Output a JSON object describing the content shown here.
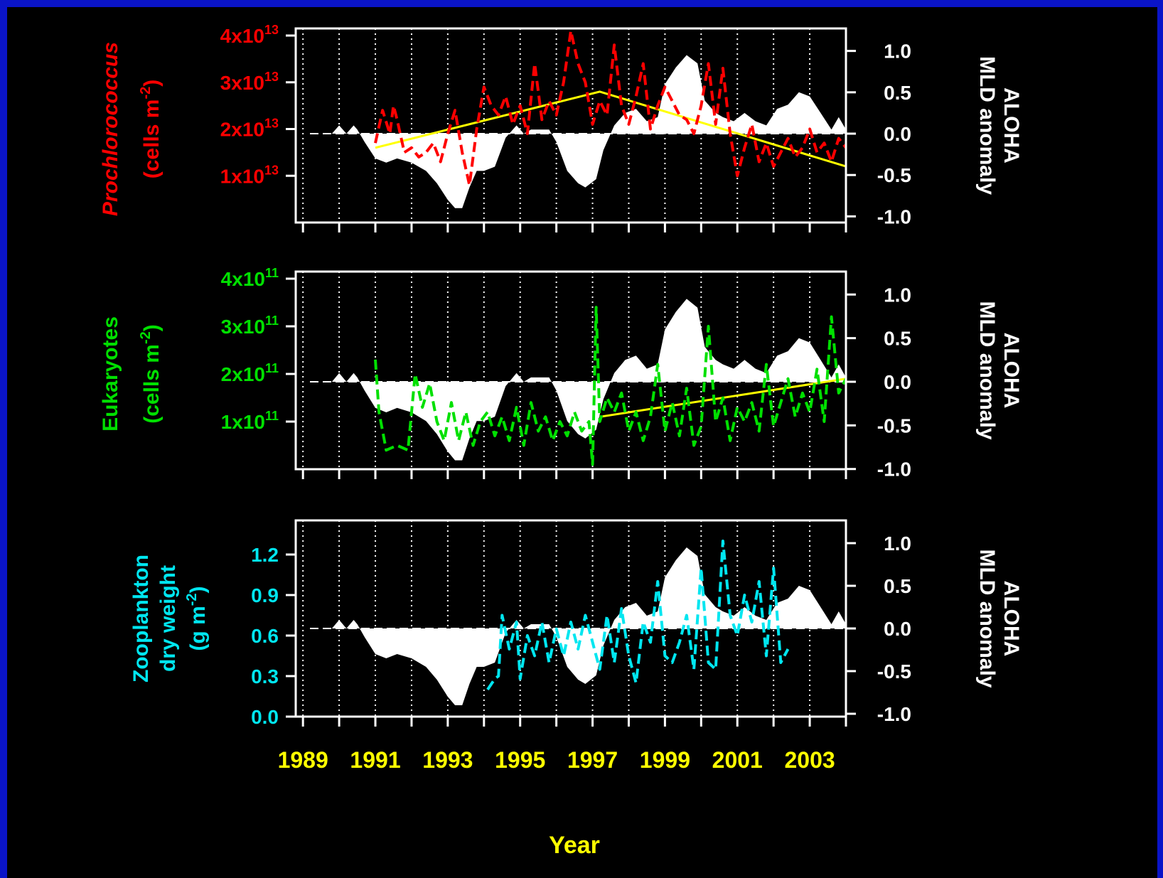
{
  "colors": {
    "background": "#000000",
    "border": "#0a14c8",
    "axis": "#ffffff",
    "year_labels": "#ffff00",
    "trend": "#ffff00",
    "prochlorococcus": "#ff0000",
    "eukaryotes": "#00e000",
    "zooplankton": "#00e6f0",
    "mld_fill": "#ffffff"
  },
  "xlabel": "Year",
  "chart_data": [
    {
      "type": "area",
      "panel": "prochlorococcus",
      "xlim": [
        1988.8,
        2004
      ],
      "year_ticks": [
        1989,
        1990,
        1991,
        1992,
        1993,
        1994,
        1995,
        1996,
        1997,
        1998,
        1999,
        2000,
        2001,
        2002,
        2003,
        2004
      ],
      "left_axis": {
        "label_italic": "Prochlorococcus",
        "label_rest": "(cells m",
        "label_exp": "-2",
        "label_close": ")",
        "ylim": [
          0,
          40000000000000.0
        ],
        "ticks": [
          {
            "v": 10000000000000.0,
            "base": "1x10",
            "exp": "13"
          },
          {
            "v": 20000000000000.0,
            "base": "2x10",
            "exp": "13"
          },
          {
            "v": 30000000000000.0,
            "base": "3x10",
            "exp": "13"
          },
          {
            "v": 40000000000000.0,
            "base": "4x10",
            "exp": "13"
          }
        ]
      },
      "right_axis": {
        "label_line1": "ALOHA",
        "label_line2": "MLD anomaly",
        "ylim": [
          -1.0,
          1.1
        ],
        "ticks": [
          {
            "v": -1.0,
            "label": "-1.0"
          },
          {
            "v": -0.5,
            "label": "-0.5"
          },
          {
            "v": 0.0,
            "label": "0.0"
          },
          {
            "v": 0.5,
            "label": "0.5"
          },
          {
            "v": 1.0,
            "label": "1.0"
          }
        ]
      },
      "mld_anomaly": {
        "x": [
          1989.8,
          1990.0,
          1990.2,
          1990.4,
          1990.5,
          1990.7,
          1991.0,
          1991.3,
          1991.6,
          1992.0,
          1992.4,
          1992.7,
          1993.0,
          1993.2,
          1993.4,
          1993.6,
          1993.8,
          1994.0,
          1994.3,
          1994.6,
          1994.9,
          1995.1,
          1995.3,
          1995.6,
          1995.8,
          1996.0,
          1996.3,
          1996.6,
          1996.8,
          1997.1,
          1997.3,
          1997.6,
          1997.9,
          1998.2,
          1998.5,
          1998.8,
          1999.0,
          1999.3,
          1999.6,
          1999.9,
          2000.1,
          2000.4,
          2000.6,
          2000.9,
          2001.2,
          2001.5,
          2001.8,
          2002.1,
          2002.4,
          2002.7,
          2003.0,
          2003.3,
          2003.6,
          2003.8,
          2004.0
        ],
        "y": [
          0.0,
          0.1,
          0.0,
          0.1,
          0.05,
          -0.1,
          -0.3,
          -0.35,
          -0.3,
          -0.35,
          -0.45,
          -0.6,
          -0.8,
          -0.9,
          -0.9,
          -0.65,
          -0.45,
          -0.45,
          -0.4,
          -0.05,
          0.1,
          0.0,
          0.05,
          0.05,
          0.05,
          -0.1,
          -0.45,
          -0.6,
          -0.65,
          -0.55,
          -0.2,
          0.1,
          0.25,
          0.3,
          0.15,
          0.2,
          0.6,
          0.8,
          0.95,
          0.85,
          0.4,
          0.25,
          0.2,
          0.15,
          0.25,
          0.15,
          0.1,
          0.3,
          0.35,
          0.5,
          0.45,
          0.25,
          0.05,
          0.2,
          0.05
        ]
      },
      "series": {
        "x": [
          1991.0,
          1991.2,
          1991.4,
          1991.5,
          1991.6,
          1991.8,
          1992.0,
          1992.2,
          1992.4,
          1992.6,
          1992.8,
          1993.0,
          1993.2,
          1993.4,
          1993.6,
          1993.8,
          1994.0,
          1994.2,
          1994.4,
          1994.6,
          1994.8,
          1995.0,
          1995.2,
          1995.4,
          1995.6,
          1995.8,
          1996.0,
          1996.2,
          1996.4,
          1996.6,
          1996.8,
          1997.0,
          1997.2,
          1997.4,
          1997.6,
          1997.8,
          1998.0,
          1998.2,
          1998.4,
          1998.6,
          1998.8,
          1999.0,
          1999.2,
          1999.4,
          1999.6,
          1999.8,
          2000.0,
          2000.2,
          2000.4,
          2000.6,
          2000.8,
          2001.0,
          2001.2,
          2001.4,
          2001.6,
          2001.8,
          2002.0,
          2002.2,
          2002.4,
          2002.6,
          2002.8,
          2003.0,
          2003.2,
          2003.4,
          2003.6,
          2003.8,
          2004.0
        ],
        "y": [
          17000000000000.0,
          24000000000000.0,
          19000000000000.0,
          25000000000000.0,
          22000000000000.0,
          15000000000000.0,
          16000000000000.0,
          14000000000000.0,
          15000000000000.0,
          17000000000000.0,
          13000000000000.0,
          19000000000000.0,
          24000000000000.0,
          15000000000000.0,
          8000000000000.0,
          20000000000000.0,
          29000000000000.0,
          25000000000000.0,
          23000000000000.0,
          27000000000000.0,
          21000000000000.0,
          25000000000000.0,
          19000000000000.0,
          34000000000000.0,
          22000000000000.0,
          26000000000000.0,
          23000000000000.0,
          30000000000000.0,
          41000000000000.0,
          34000000000000.0,
          30000000000000.0,
          21000000000000.0,
          26000000000000.0,
          23000000000000.0,
          38000000000000.0,
          25000000000000.0,
          21000000000000.0,
          27000000000000.0,
          34000000000000.0,
          20000000000000.0,
          25000000000000.0,
          29000000000000.0,
          26000000000000.0,
          23000000000000.0,
          22000000000000.0,
          19000000000000.0,
          25000000000000.0,
          34000000000000.0,
          21000000000000.0,
          33000000000000.0,
          19000000000000.0,
          10000000000000.0,
          16000000000000.0,
          21000000000000.0,
          13000000000000.0,
          17000000000000.0,
          12000000000000.0,
          15000000000000.0,
          18000000000000.0,
          14000000000000.0,
          16000000000000.0,
          20000000000000.0,
          15000000000000.0,
          17000000000000.0,
          13000000000000.0,
          18000000000000.0,
          16000000000000.0
        ]
      },
      "trend": {
        "x": [
          1991.0,
          1997.2,
          2004.0
        ],
        "y": [
          16000000000000.0,
          28000000000000.0,
          12000000000000.0
        ]
      }
    },
    {
      "type": "area",
      "panel": "eukaryotes",
      "xlim": [
        1988.8,
        2004
      ],
      "year_ticks": [
        1989,
        1990,
        1991,
        1992,
        1993,
        1994,
        1995,
        1996,
        1997,
        1998,
        1999,
        2000,
        2001,
        2002,
        2003,
        2004
      ],
      "left_axis": {
        "label_line1": "Eukaryotes",
        "label_rest": "(cells m",
        "label_exp": "-2",
        "label_close": ")",
        "ylim": [
          0,
          400000000000.0
        ],
        "ticks": [
          {
            "v": 100000000000.0,
            "base": "1x10",
            "exp": "11"
          },
          {
            "v": 200000000000.0,
            "base": "2x10",
            "exp": "11"
          },
          {
            "v": 300000000000.0,
            "base": "3x10",
            "exp": "11"
          },
          {
            "v": 400000000000.0,
            "base": "4x10",
            "exp": "11"
          }
        ]
      },
      "right_axis": {
        "label_line1": "ALOHA",
        "label_line2": "MLD anomaly",
        "ylim": [
          -1.0,
          1.1
        ],
        "ticks": [
          {
            "v": -1.0,
            "label": "-1.0"
          },
          {
            "v": -0.5,
            "label": "-0.5"
          },
          {
            "v": 0.0,
            "label": "0.0"
          },
          {
            "v": 0.5,
            "label": "0.5"
          },
          {
            "v": 1.0,
            "label": "1.0"
          }
        ]
      },
      "mld_anomaly": {
        "x": [
          1989.8,
          1990.0,
          1990.2,
          1990.4,
          1990.5,
          1990.7,
          1991.0,
          1991.3,
          1991.6,
          1992.0,
          1992.4,
          1992.7,
          1993.0,
          1993.2,
          1993.4,
          1993.6,
          1993.8,
          1994.0,
          1994.3,
          1994.6,
          1994.9,
          1995.1,
          1995.3,
          1995.6,
          1995.8,
          1996.0,
          1996.3,
          1996.6,
          1996.8,
          1997.1,
          1997.3,
          1997.6,
          1997.9,
          1998.2,
          1998.5,
          1998.8,
          1999.0,
          1999.3,
          1999.6,
          1999.9,
          2000.1,
          2000.4,
          2000.6,
          2000.9,
          2001.2,
          2001.5,
          2001.8,
          2002.1,
          2002.4,
          2002.7,
          2003.0,
          2003.3,
          2003.6,
          2003.8,
          2004.0
        ],
        "y": [
          0.0,
          0.1,
          0.0,
          0.1,
          0.05,
          -0.1,
          -0.3,
          -0.35,
          -0.3,
          -0.35,
          -0.45,
          -0.6,
          -0.8,
          -0.9,
          -0.9,
          -0.65,
          -0.45,
          -0.45,
          -0.4,
          -0.05,
          0.1,
          0.0,
          0.05,
          0.05,
          0.05,
          -0.1,
          -0.45,
          -0.6,
          -0.65,
          -0.55,
          -0.2,
          0.1,
          0.25,
          0.3,
          0.15,
          0.2,
          0.6,
          0.8,
          0.95,
          0.85,
          0.4,
          0.25,
          0.2,
          0.15,
          0.25,
          0.15,
          0.1,
          0.3,
          0.35,
          0.5,
          0.45,
          0.25,
          0.05,
          0.2,
          0.05
        ]
      },
      "series": {
        "x": [
          1991.0,
          1991.1,
          1991.3,
          1991.6,
          1991.9,
          1992.1,
          1992.3,
          1992.5,
          1992.7,
          1992.9,
          1993.1,
          1993.3,
          1993.5,
          1993.7,
          1993.9,
          1994.1,
          1994.3,
          1994.5,
          1994.7,
          1994.9,
          1995.1,
          1995.3,
          1995.5,
          1995.7,
          1995.9,
          1996.1,
          1996.3,
          1996.5,
          1996.7,
          1996.9,
          1997.0,
          1997.1,
          1997.2,
          1997.4,
          1997.6,
          1997.8,
          1998.0,
          1998.2,
          1998.4,
          1998.6,
          1998.8,
          1999.0,
          1999.2,
          1999.4,
          1999.6,
          1999.8,
          2000.0,
          2000.2,
          2000.4,
          2000.6,
          2000.8,
          2001.0,
          2001.2,
          2001.4,
          2001.6,
          2001.8,
          2002.0,
          2002.2,
          2002.4,
          2002.6,
          2002.8,
          2003.0,
          2003.2,
          2003.4,
          2003.6,
          2003.8,
          2004.0
        ],
        "y": [
          230000000000.0,
          120000000000.0,
          40000000000.0,
          50000000000.0,
          40000000000.0,
          200000000000.0,
          130000000000.0,
          180000000000.0,
          100000000000.0,
          60000000000.0,
          140000000000.0,
          60000000000.0,
          120000000000.0,
          50000000000.0,
          100000000000.0,
          120000000000.0,
          70000000000.0,
          110000000000.0,
          60000000000.0,
          130000000000.0,
          50000000000.0,
          140000000000.0,
          80000000000.0,
          110000000000.0,
          60000000000.0,
          100000000000.0,
          70000000000.0,
          120000000000.0,
          80000000000.0,
          100000000000.0,
          10000000000.0,
          340000000000.0,
          100000000000.0,
          150000000000.0,
          120000000000.0,
          160000000000.0,
          80000000000.0,
          120000000000.0,
          60000000000.0,
          110000000000.0,
          220000000000.0,
          80000000000.0,
          140000000000.0,
          70000000000.0,
          170000000000.0,
          50000000000.0,
          90000000000.0,
          300000000000.0,
          100000000000.0,
          150000000000.0,
          60000000000.0,
          130000000000.0,
          100000000000.0,
          140000000000.0,
          80000000000.0,
          220000000000.0,
          90000000000.0,
          140000000000.0,
          190000000000.0,
          110000000000.0,
          160000000000.0,
          120000000000.0,
          210000000000.0,
          100000000000.0,
          320000000000.0,
          160000000000.0,
          190000000000.0
        ]
      },
      "trend": {
        "x": [
          1997.2,
          2004.0
        ],
        "y": [
          110000000000.0,
          190000000000.0
        ]
      }
    },
    {
      "type": "area",
      "panel": "zooplankton",
      "xlim": [
        1988.8,
        2004
      ],
      "year_ticks": [
        1989,
        1990,
        1991,
        1992,
        1993,
        1994,
        1995,
        1996,
        1997,
        1998,
        1999,
        2000,
        2001,
        2002,
        2003,
        2004
      ],
      "left_axis": {
        "label_line1": "Zooplankton",
        "label_line2": "dry weight",
        "label_rest": "(g m",
        "label_exp": "-2",
        "label_close": ")",
        "ylim": [
          0,
          1.4
        ],
        "ticks": [
          {
            "v": 0.0,
            "base": "0.0"
          },
          {
            "v": 0.3,
            "base": "0.3"
          },
          {
            "v": 0.6,
            "base": "0.6"
          },
          {
            "v": 0.9,
            "base": "0.9"
          },
          {
            "v": 1.2,
            "base": "1.2"
          }
        ]
      },
      "right_axis": {
        "label_line1": "ALOHA",
        "label_line2": "MLD anomaly",
        "ylim": [
          -1.0,
          1.1
        ],
        "ticks": [
          {
            "v": -1.0,
            "label": "-1.0"
          },
          {
            "v": -0.5,
            "label": "-0.5"
          },
          {
            "v": 0.0,
            "label": "0.0"
          },
          {
            "v": 0.5,
            "label": "0.5"
          },
          {
            "v": 1.0,
            "label": "1.0"
          }
        ]
      },
      "mld_anomaly": {
        "x": [
          1989.8,
          1990.0,
          1990.2,
          1990.4,
          1990.5,
          1990.7,
          1991.0,
          1991.3,
          1991.6,
          1992.0,
          1992.4,
          1992.7,
          1993.0,
          1993.2,
          1993.4,
          1993.6,
          1993.8,
          1994.0,
          1994.3,
          1994.6,
          1994.9,
          1995.1,
          1995.3,
          1995.6,
          1995.8,
          1996.0,
          1996.3,
          1996.6,
          1996.8,
          1997.1,
          1997.3,
          1997.6,
          1997.9,
          1998.2,
          1998.5,
          1998.8,
          1999.0,
          1999.3,
          1999.6,
          1999.9,
          2000.1,
          2000.4,
          2000.6,
          2000.9,
          2001.2,
          2001.5,
          2001.8,
          2002.1,
          2002.4,
          2002.7,
          2003.0,
          2003.3,
          2003.6,
          2003.8,
          2004.0
        ],
        "y": [
          0.0,
          0.1,
          0.0,
          0.1,
          0.05,
          -0.1,
          -0.3,
          -0.35,
          -0.3,
          -0.35,
          -0.45,
          -0.6,
          -0.8,
          -0.9,
          -0.9,
          -0.65,
          -0.45,
          -0.45,
          -0.4,
          -0.05,
          0.1,
          0.0,
          0.05,
          0.05,
          0.05,
          -0.1,
          -0.45,
          -0.6,
          -0.65,
          -0.55,
          -0.2,
          0.1,
          0.25,
          0.3,
          0.15,
          0.2,
          0.6,
          0.8,
          0.95,
          0.85,
          0.4,
          0.25,
          0.2,
          0.15,
          0.25,
          0.15,
          0.1,
          0.3,
          0.35,
          0.5,
          0.45,
          0.25,
          0.05,
          0.2,
          0.05
        ]
      },
      "series": {
        "x": [
          1994.1,
          1994.3,
          1994.4,
          1994.5,
          1994.7,
          1994.9,
          1995.0,
          1995.2,
          1995.4,
          1995.6,
          1995.8,
          1996.0,
          1996.2,
          1996.4,
          1996.6,
          1996.8,
          1997.0,
          1997.2,
          1997.4,
          1997.6,
          1997.8,
          1998.0,
          1998.2,
          1998.4,
          1998.6,
          1998.8,
          1999.0,
          1999.2,
          1999.4,
          1999.6,
          1999.8,
          2000.0,
          2000.2,
          2000.4,
          2000.6,
          2000.8,
          2001.0,
          2001.2,
          2001.4,
          2001.6,
          2001.8,
          2002.0,
          2002.2,
          2002.4
        ],
        "y": [
          0.2,
          0.28,
          0.3,
          0.75,
          0.5,
          0.7,
          0.28,
          0.6,
          0.45,
          0.7,
          0.4,
          0.65,
          0.45,
          0.7,
          0.5,
          0.75,
          0.55,
          0.35,
          0.75,
          0.4,
          0.8,
          0.45,
          0.25,
          0.7,
          0.55,
          1.0,
          0.45,
          0.4,
          0.55,
          0.75,
          0.35,
          1.1,
          0.4,
          0.35,
          1.3,
          0.75,
          0.6,
          0.9,
          0.7,
          1.0,
          0.45,
          1.1,
          0.4,
          0.5
        ]
      }
    }
  ]
}
